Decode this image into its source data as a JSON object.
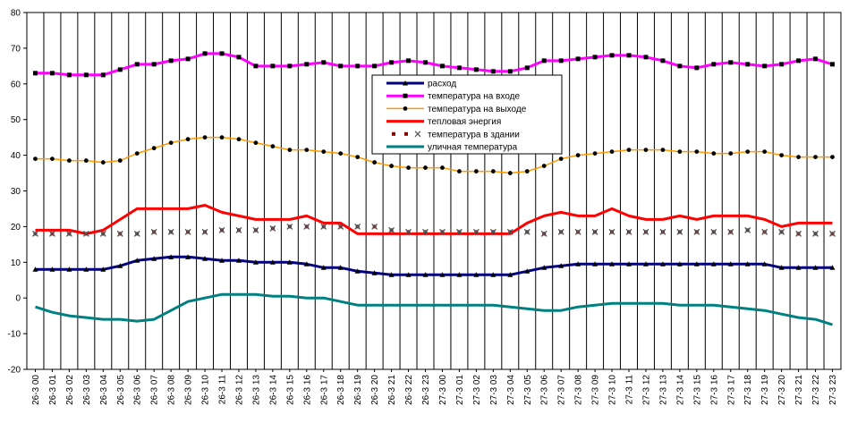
{
  "chart_data": {
    "type": "line",
    "title": "",
    "xlabel": "",
    "ylabel": "",
    "ylim": [
      -20,
      80
    ],
    "yticks": [
      -20,
      -10,
      0,
      10,
      20,
      30,
      40,
      50,
      60,
      70,
      80
    ],
    "grid": "vertical",
    "legend_position": "center",
    "categories": [
      "26-3 00",
      "26-3 01",
      "26-3 02",
      "26-3 03",
      "26-3 04",
      "26-3 05",
      "26-3 06",
      "26-3 07",
      "26-3 08",
      "26-3 09",
      "26-3 10",
      "26-3 11",
      "26-3 12",
      "26-3 13",
      "26-3 14",
      "26-3 15",
      "26-3 16",
      "26-3 17",
      "26-3 18",
      "26-3 19",
      "26-3 20",
      "26-3 21",
      "26-3 22",
      "26-3 23",
      "27-3 00",
      "27-3 01",
      "27-3 02",
      "27-3 03",
      "27-3 04",
      "27-3 05",
      "27-3 06",
      "27-3 07",
      "27-3 08",
      "27-3 09",
      "27-3 10",
      "27-3 11",
      "27-3 12",
      "27-3 13",
      "27-3 14",
      "27-3 15",
      "27-3 16",
      "27-3 17",
      "27-3 18",
      "27-3 19",
      "27-3 20",
      "27-3 21",
      "27-3 22",
      "27-3 23"
    ],
    "series": [
      {
        "name": "расход",
        "color": "#000080",
        "marker": "triangle",
        "values": [
          8,
          8,
          8,
          8,
          8,
          9,
          10.5,
          11,
          11.5,
          11.5,
          11,
          10.5,
          10.5,
          10,
          10,
          10,
          9.5,
          8.5,
          8.5,
          7.5,
          7,
          6.5,
          6.5,
          6.5,
          6.5,
          6.5,
          6.5,
          6.5,
          6.5,
          7.5,
          8.5,
          9,
          9.5,
          9.5,
          9.5,
          9.5,
          9.5,
          9.5,
          9.5,
          9.5,
          9.5,
          9.5,
          9.5,
          9.5,
          8.5,
          8.5,
          8.5,
          8.5
        ]
      },
      {
        "name": "температура на входе",
        "color": "#ff00ff",
        "marker": "square",
        "values": [
          63,
          63,
          62.5,
          62.5,
          62.5,
          64,
          65.5,
          65.5,
          66.5,
          67,
          68.5,
          68.5,
          67.5,
          65,
          65,
          65,
          65.5,
          66,
          65,
          65,
          65,
          66,
          66.5,
          66,
          65,
          64.5,
          64,
          63.5,
          63.5,
          64.5,
          66.5,
          66.5,
          67,
          67.5,
          68,
          68,
          67.5,
          66.5,
          65,
          64.5,
          65.5,
          66,
          65.5,
          65,
          65.5,
          66.5,
          67,
          65.5
        ]
      },
      {
        "name": "температура на выходе",
        "color": "#ff9900",
        "marker": "circle",
        "values": [
          39,
          39,
          38.5,
          38.5,
          38,
          38.5,
          40.5,
          42,
          43.5,
          44.5,
          45,
          45,
          44.5,
          43.5,
          42.5,
          41.5,
          41.5,
          41,
          40.5,
          39.5,
          38,
          37,
          36.5,
          36.5,
          36.5,
          35.5,
          35.5,
          35.5,
          35,
          35.5,
          37,
          39,
          40,
          40.5,
          41,
          41.5,
          41.5,
          41.5,
          41,
          41,
          40.5,
          40.5,
          41,
          41,
          40,
          39.5,
          39.5,
          39.5
        ]
      },
      {
        "name": "тепловая энергия",
        "color": "#ff0000",
        "marker": "none",
        "values": [
          19,
          19,
          19,
          18,
          19,
          22,
          25,
          25,
          25,
          25,
          26,
          24,
          23,
          22,
          22,
          22,
          23,
          21,
          21,
          18,
          18,
          18,
          18,
          18,
          18,
          18,
          18,
          18,
          18,
          21,
          23,
          24,
          23,
          23,
          25,
          23,
          22,
          22,
          23,
          22,
          23,
          23,
          23,
          22,
          20,
          21,
          21,
          21
        ]
      },
      {
        "name": "температура в здании",
        "color": "#800000",
        "marker": "x",
        "values": [
          18,
          18,
          18,
          18,
          18,
          18,
          18,
          18.5,
          18.5,
          18.5,
          18.5,
          19,
          19,
          19,
          19.5,
          20,
          20,
          20,
          20,
          20,
          20,
          19,
          18.5,
          18.5,
          18.5,
          18.5,
          18.5,
          18.5,
          18.5,
          18.5,
          18,
          18.5,
          18.5,
          18.5,
          18.5,
          18.5,
          18.5,
          18.5,
          18.5,
          18.5,
          18.5,
          18.5,
          19,
          18.5,
          18.5,
          18,
          18,
          18
        ]
      },
      {
        "name": "уличная температура",
        "color": "#008080",
        "marker": "none",
        "values": [
          -2.5,
          -4,
          -5,
          -5.5,
          -6,
          -6,
          -6.5,
          -6,
          -3.5,
          -1,
          0,
          1,
          1,
          1,
          0.5,
          0.5,
          0,
          0,
          -1,
          -2,
          -2,
          -2,
          -2,
          -2,
          -2,
          -2,
          -2,
          -2,
          -2.5,
          -3,
          -3.5,
          -3.5,
          -2.5,
          -2,
          -1.5,
          -1.5,
          -1.5,
          -1.5,
          -2,
          -2,
          -2,
          -2.5,
          -3,
          -3.5,
          -4.5,
          -5.5,
          -6,
          -7.5
        ]
      }
    ]
  }
}
